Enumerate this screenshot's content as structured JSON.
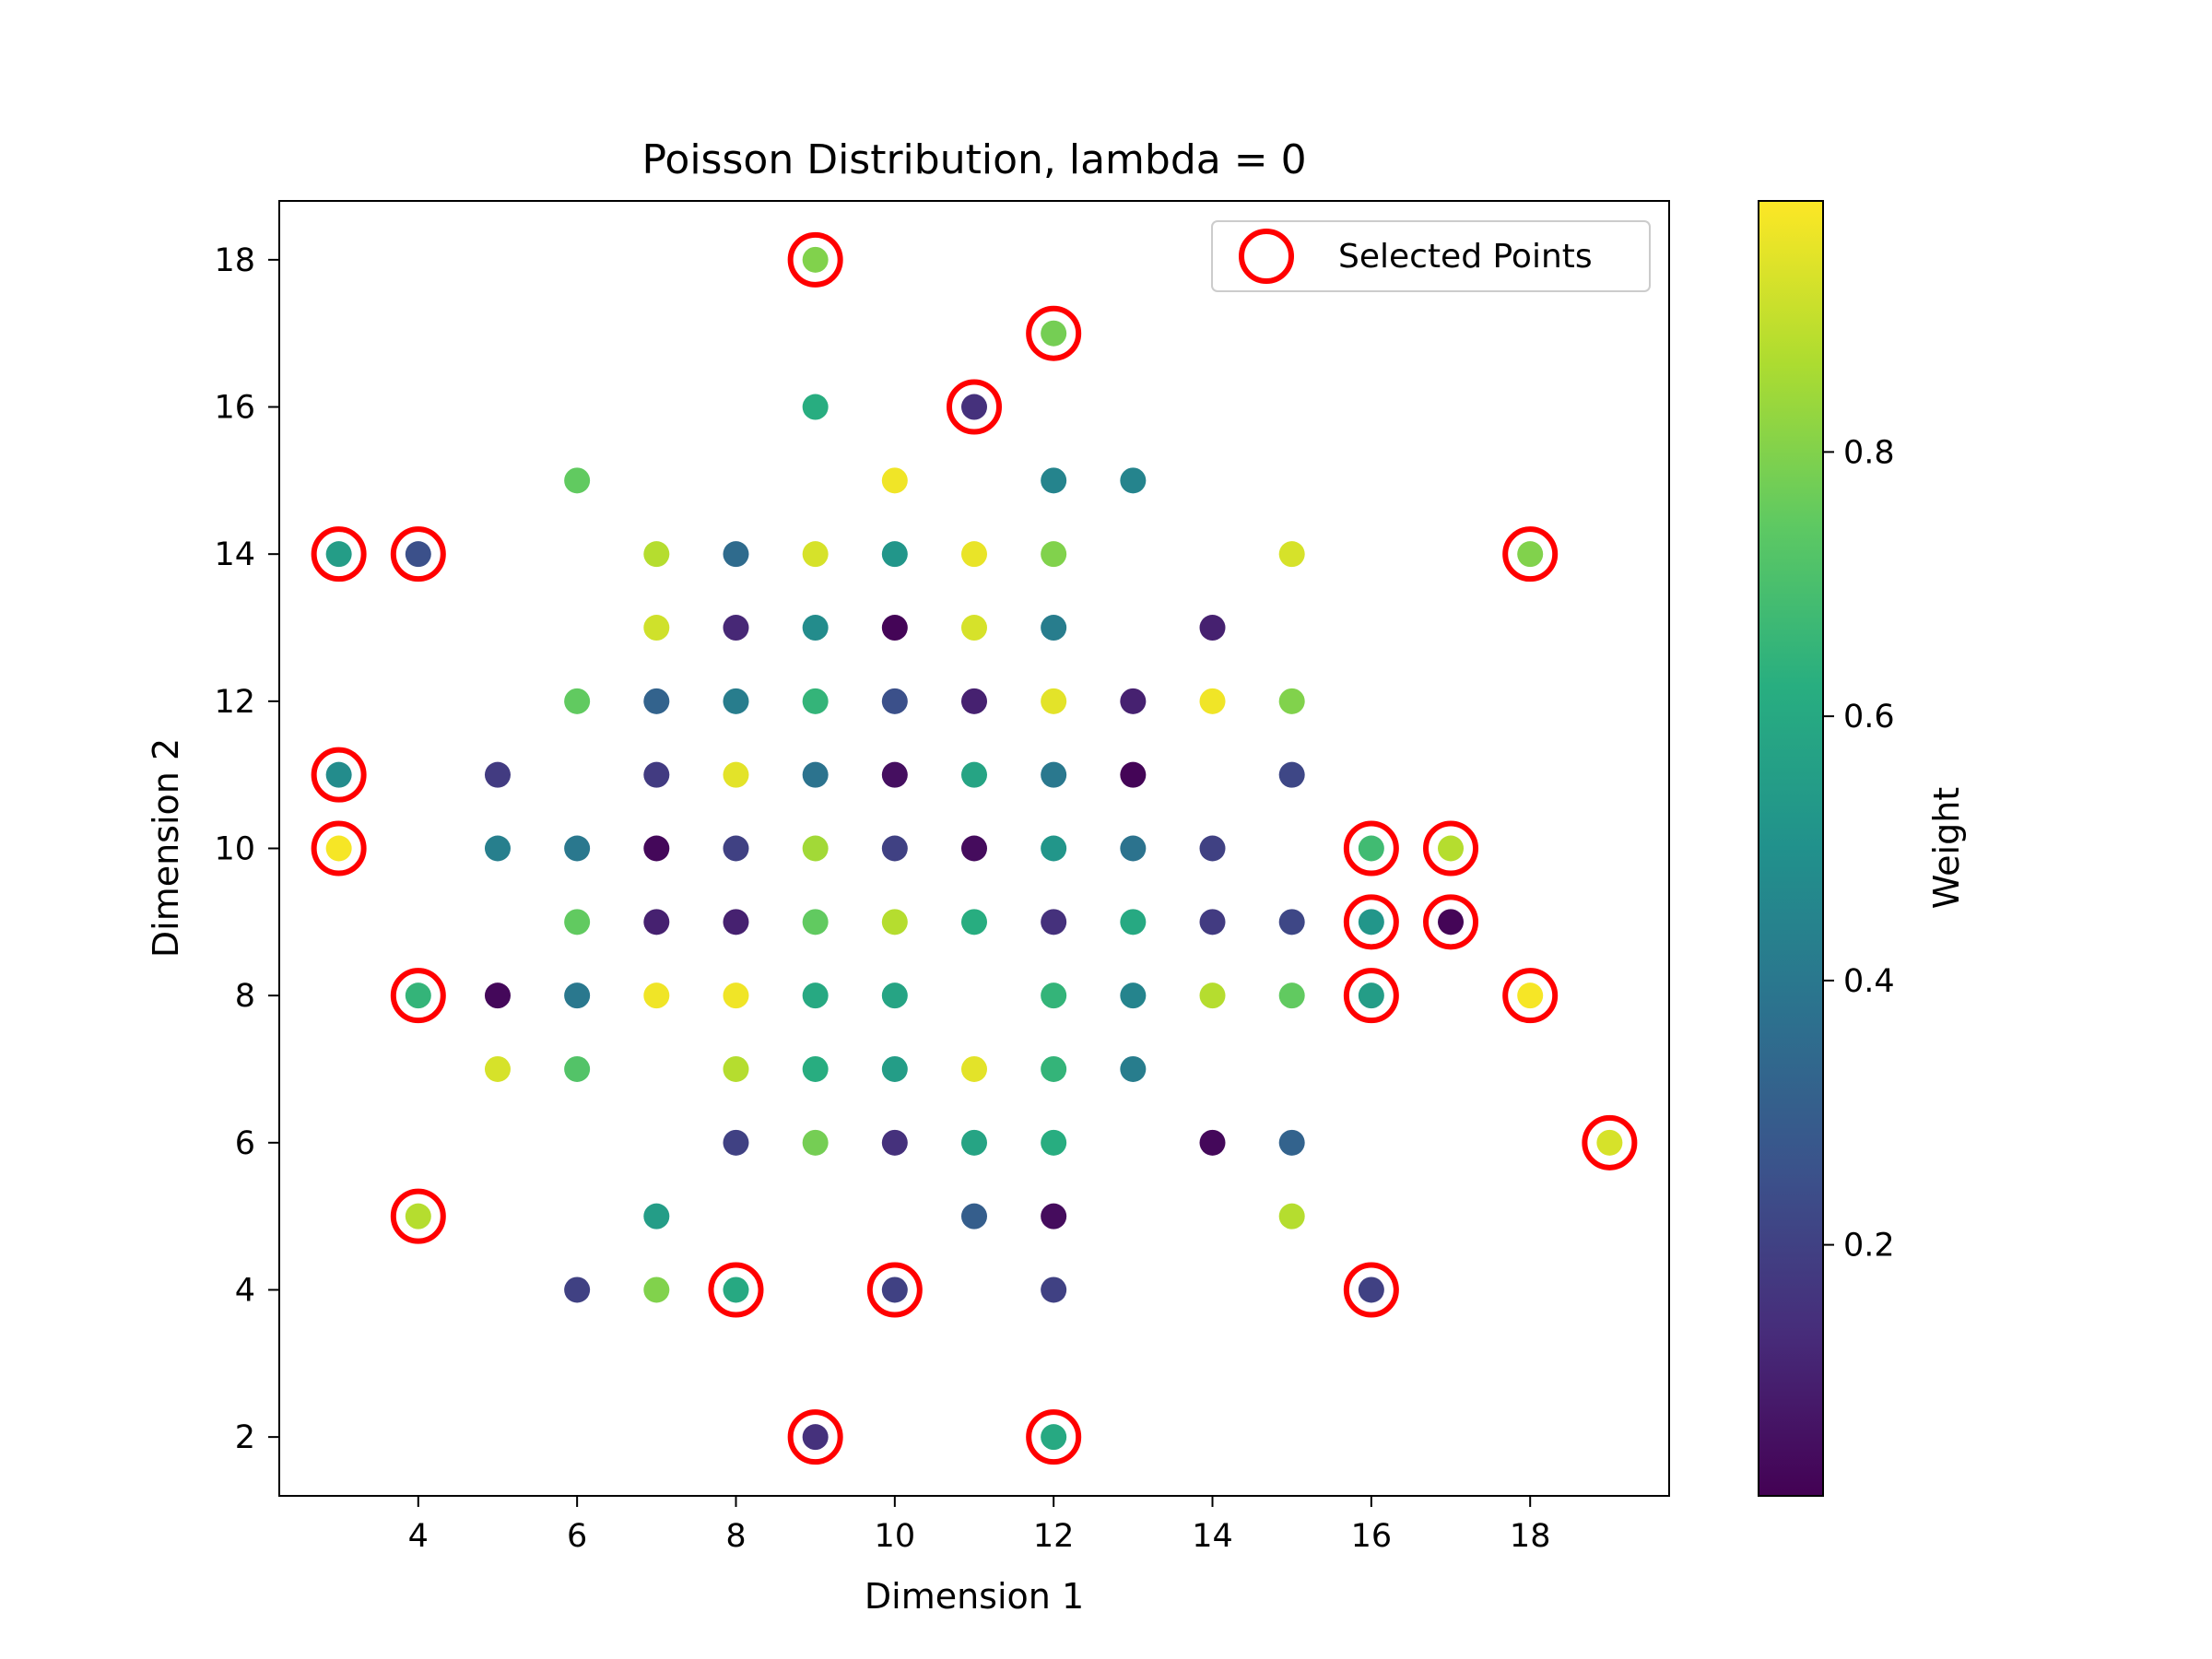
{
  "chart_data": {
    "type": "scatter",
    "title": "Poisson Distribution, lambda = 0",
    "xlabel": "Dimension 1",
    "ylabel": "Dimension 2",
    "xlim": [
      2.25,
      19.75
    ],
    "ylim": [
      1.2,
      18.8
    ],
    "xticks": [
      "4",
      "6",
      "8",
      "10",
      "12",
      "14",
      "16",
      "18"
    ],
    "yticks": [
      "2",
      "4",
      "6",
      "8",
      "10",
      "12",
      "14",
      "16",
      "18"
    ],
    "grid": false,
    "colormap": "viridis",
    "colorbar": {
      "label": "Weight",
      "range": [
        0.01,
        0.99
      ],
      "ticks": [
        "0.2",
        "0.4",
        "0.6",
        "0.8"
      ]
    },
    "legend": {
      "position": "top-right",
      "entries": [
        "Selected Points"
      ]
    },
    "selected_marker_color": "#ff0000",
    "points": [
      {
        "x": 3,
        "y": 14,
        "w": 0.55,
        "selected": true
      },
      {
        "x": 3,
        "y": 11,
        "w": 0.48,
        "selected": true
      },
      {
        "x": 3,
        "y": 10,
        "w": 0.98,
        "selected": true
      },
      {
        "x": 4,
        "y": 14,
        "w": 0.25,
        "selected": true
      },
      {
        "x": 4,
        "y": 8,
        "w": 0.65,
        "selected": true
      },
      {
        "x": 4,
        "y": 5,
        "w": 0.88,
        "selected": true
      },
      {
        "x": 5,
        "y": 11,
        "w": 0.18,
        "selected": false
      },
      {
        "x": 5,
        "y": 10,
        "w": 0.43,
        "selected": false
      },
      {
        "x": 5,
        "y": 8,
        "w": 0.03,
        "selected": false
      },
      {
        "x": 5,
        "y": 7,
        "w": 0.93,
        "selected": false
      },
      {
        "x": 6,
        "y": 15,
        "w": 0.75,
        "selected": false
      },
      {
        "x": 6,
        "y": 12,
        "w": 0.75,
        "selected": false
      },
      {
        "x": 6,
        "y": 10,
        "w": 0.4,
        "selected": false
      },
      {
        "x": 6,
        "y": 9,
        "w": 0.75,
        "selected": false
      },
      {
        "x": 6,
        "y": 8,
        "w": 0.4,
        "selected": false
      },
      {
        "x": 6,
        "y": 7,
        "w": 0.72,
        "selected": false
      },
      {
        "x": 6,
        "y": 4,
        "w": 0.2,
        "selected": false
      },
      {
        "x": 7,
        "y": 14,
        "w": 0.88,
        "selected": false
      },
      {
        "x": 7,
        "y": 13,
        "w": 0.92,
        "selected": false
      },
      {
        "x": 7,
        "y": 12,
        "w": 0.32,
        "selected": false
      },
      {
        "x": 7,
        "y": 11,
        "w": 0.18,
        "selected": false
      },
      {
        "x": 7,
        "y": 10,
        "w": 0.03,
        "selected": false
      },
      {
        "x": 7,
        "y": 9,
        "w": 0.1,
        "selected": false
      },
      {
        "x": 7,
        "y": 8,
        "w": 0.97,
        "selected": false
      },
      {
        "x": 7,
        "y": 5,
        "w": 0.55,
        "selected": false
      },
      {
        "x": 7,
        "y": 4,
        "w": 0.8,
        "selected": false
      },
      {
        "x": 8,
        "y": 14,
        "w": 0.35,
        "selected": false
      },
      {
        "x": 8,
        "y": 13,
        "w": 0.12,
        "selected": false
      },
      {
        "x": 8,
        "y": 12,
        "w": 0.42,
        "selected": false
      },
      {
        "x": 8,
        "y": 11,
        "w": 0.95,
        "selected": false
      },
      {
        "x": 8,
        "y": 10,
        "w": 0.2,
        "selected": false
      },
      {
        "x": 8,
        "y": 9,
        "w": 0.1,
        "selected": false
      },
      {
        "x": 8,
        "y": 8,
        "w": 0.97,
        "selected": false
      },
      {
        "x": 8,
        "y": 7,
        "w": 0.88,
        "selected": false
      },
      {
        "x": 8,
        "y": 6,
        "w": 0.2,
        "selected": false
      },
      {
        "x": 8,
        "y": 4,
        "w": 0.6,
        "selected": true
      },
      {
        "x": 9,
        "y": 18,
        "w": 0.8,
        "selected": true
      },
      {
        "x": 9,
        "y": 16,
        "w": 0.62,
        "selected": false
      },
      {
        "x": 9,
        "y": 14,
        "w": 0.93,
        "selected": false
      },
      {
        "x": 9,
        "y": 13,
        "w": 0.48,
        "selected": false
      },
      {
        "x": 9,
        "y": 12,
        "w": 0.65,
        "selected": false
      },
      {
        "x": 9,
        "y": 11,
        "w": 0.38,
        "selected": false
      },
      {
        "x": 9,
        "y": 10,
        "w": 0.85,
        "selected": false
      },
      {
        "x": 9,
        "y": 9,
        "w": 0.75,
        "selected": false
      },
      {
        "x": 9,
        "y": 8,
        "w": 0.6,
        "selected": false
      },
      {
        "x": 9,
        "y": 7,
        "w": 0.62,
        "selected": false
      },
      {
        "x": 9,
        "y": 6,
        "w": 0.78,
        "selected": false
      },
      {
        "x": 9,
        "y": 2,
        "w": 0.15,
        "selected": true
      },
      {
        "x": 10,
        "y": 15,
        "w": 0.97,
        "selected": false
      },
      {
        "x": 10,
        "y": 14,
        "w": 0.52,
        "selected": false
      },
      {
        "x": 10,
        "y": 13,
        "w": 0.02,
        "selected": false
      },
      {
        "x": 10,
        "y": 12,
        "w": 0.25,
        "selected": false
      },
      {
        "x": 10,
        "y": 11,
        "w": 0.05,
        "selected": false
      },
      {
        "x": 10,
        "y": 10,
        "w": 0.2,
        "selected": false
      },
      {
        "x": 10,
        "y": 9,
        "w": 0.88,
        "selected": false
      },
      {
        "x": 10,
        "y": 8,
        "w": 0.58,
        "selected": false
      },
      {
        "x": 10,
        "y": 7,
        "w": 0.55,
        "selected": false
      },
      {
        "x": 10,
        "y": 6,
        "w": 0.15,
        "selected": false
      },
      {
        "x": 10,
        "y": 4,
        "w": 0.2,
        "selected": true
      },
      {
        "x": 11,
        "y": 16,
        "w": 0.15,
        "selected": true
      },
      {
        "x": 11,
        "y": 14,
        "w": 0.96,
        "selected": false
      },
      {
        "x": 11,
        "y": 13,
        "w": 0.93,
        "selected": false
      },
      {
        "x": 11,
        "y": 12,
        "w": 0.1,
        "selected": false
      },
      {
        "x": 11,
        "y": 11,
        "w": 0.58,
        "selected": false
      },
      {
        "x": 11,
        "y": 10,
        "w": 0.04,
        "selected": false
      },
      {
        "x": 11,
        "y": 9,
        "w": 0.62,
        "selected": false
      },
      {
        "x": 11,
        "y": 7,
        "w": 0.95,
        "selected": false
      },
      {
        "x": 11,
        "y": 6,
        "w": 0.58,
        "selected": false
      },
      {
        "x": 11,
        "y": 5,
        "w": 0.3,
        "selected": false
      },
      {
        "x": 12,
        "y": 17,
        "w": 0.78,
        "selected": true
      },
      {
        "x": 12,
        "y": 15,
        "w": 0.45,
        "selected": false
      },
      {
        "x": 12,
        "y": 14,
        "w": 0.8,
        "selected": false
      },
      {
        "x": 12,
        "y": 13,
        "w": 0.42,
        "selected": false
      },
      {
        "x": 12,
        "y": 12,
        "w": 0.95,
        "selected": false
      },
      {
        "x": 12,
        "y": 11,
        "w": 0.4,
        "selected": false
      },
      {
        "x": 12,
        "y": 10,
        "w": 0.52,
        "selected": false
      },
      {
        "x": 12,
        "y": 9,
        "w": 0.15,
        "selected": false
      },
      {
        "x": 12,
        "y": 8,
        "w": 0.65,
        "selected": false
      },
      {
        "x": 12,
        "y": 7,
        "w": 0.65,
        "selected": false
      },
      {
        "x": 12,
        "y": 6,
        "w": 0.62,
        "selected": false
      },
      {
        "x": 12,
        "y": 5,
        "w": 0.04,
        "selected": false
      },
      {
        "x": 12,
        "y": 4,
        "w": 0.2,
        "selected": false
      },
      {
        "x": 12,
        "y": 2,
        "w": 0.6,
        "selected": true
      },
      {
        "x": 13,
        "y": 15,
        "w": 0.45,
        "selected": false
      },
      {
        "x": 13,
        "y": 12,
        "w": 0.1,
        "selected": false
      },
      {
        "x": 13,
        "y": 11,
        "w": 0.02,
        "selected": false
      },
      {
        "x": 13,
        "y": 10,
        "w": 0.38,
        "selected": false
      },
      {
        "x": 13,
        "y": 9,
        "w": 0.6,
        "selected": false
      },
      {
        "x": 13,
        "y": 8,
        "w": 0.45,
        "selected": false
      },
      {
        "x": 13,
        "y": 7,
        "w": 0.42,
        "selected": false
      },
      {
        "x": 14,
        "y": 13,
        "w": 0.1,
        "selected": false
      },
      {
        "x": 14,
        "y": 12,
        "w": 0.97,
        "selected": false
      },
      {
        "x": 14,
        "y": 10,
        "w": 0.2,
        "selected": false
      },
      {
        "x": 14,
        "y": 9,
        "w": 0.18,
        "selected": false
      },
      {
        "x": 14,
        "y": 8,
        "w": 0.88,
        "selected": false
      },
      {
        "x": 14,
        "y": 6,
        "w": 0.03,
        "selected": false
      },
      {
        "x": 15,
        "y": 14,
        "w": 0.93,
        "selected": false
      },
      {
        "x": 15,
        "y": 12,
        "w": 0.8,
        "selected": false
      },
      {
        "x": 15,
        "y": 11,
        "w": 0.22,
        "selected": false
      },
      {
        "x": 15,
        "y": 9,
        "w": 0.22,
        "selected": false
      },
      {
        "x": 15,
        "y": 8,
        "w": 0.75,
        "selected": false
      },
      {
        "x": 15,
        "y": 6,
        "w": 0.32,
        "selected": false
      },
      {
        "x": 15,
        "y": 5,
        "w": 0.88,
        "selected": false
      },
      {
        "x": 16,
        "y": 10,
        "w": 0.68,
        "selected": true
      },
      {
        "x": 16,
        "y": 9,
        "w": 0.52,
        "selected": true
      },
      {
        "x": 16,
        "y": 8,
        "w": 0.55,
        "selected": true
      },
      {
        "x": 16,
        "y": 4,
        "w": 0.2,
        "selected": true
      },
      {
        "x": 17,
        "y": 10,
        "w": 0.88,
        "selected": true
      },
      {
        "x": 17,
        "y": 9,
        "w": 0.02,
        "selected": true
      },
      {
        "x": 18,
        "y": 14,
        "w": 0.8,
        "selected": true
      },
      {
        "x": 18,
        "y": 8,
        "w": 0.98,
        "selected": true
      },
      {
        "x": 19,
        "y": 6,
        "w": 0.93,
        "selected": true
      }
    ]
  }
}
